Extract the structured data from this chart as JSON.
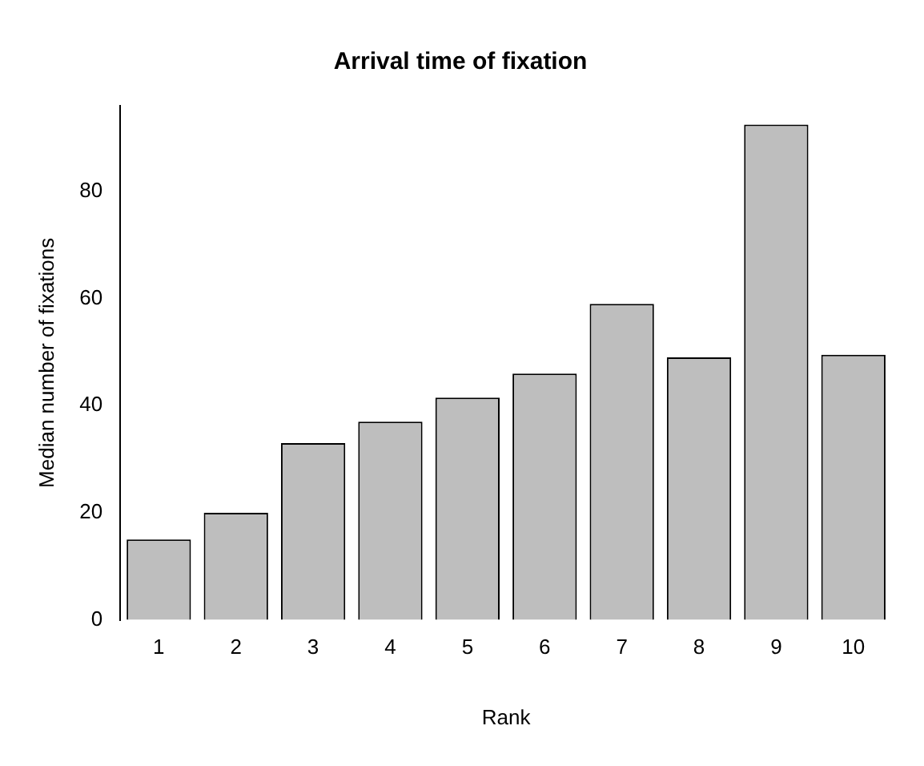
{
  "chart_data": {
    "type": "bar",
    "title": "Arrival time of fixation",
    "xlabel": "Rank",
    "ylabel": "Median number of fixations",
    "categories": [
      "1",
      "2",
      "3",
      "4",
      "5",
      "6",
      "7",
      "8",
      "9",
      "10"
    ],
    "values": [
      15,
      20,
      33,
      37,
      41.5,
      46,
      59,
      49,
      92.5,
      49.5
    ],
    "color": "#bebebe",
    "ylim": [
      0,
      96
    ],
    "yticks": [
      0,
      20,
      40,
      60,
      80
    ],
    "grid": false,
    "legend": false
  }
}
